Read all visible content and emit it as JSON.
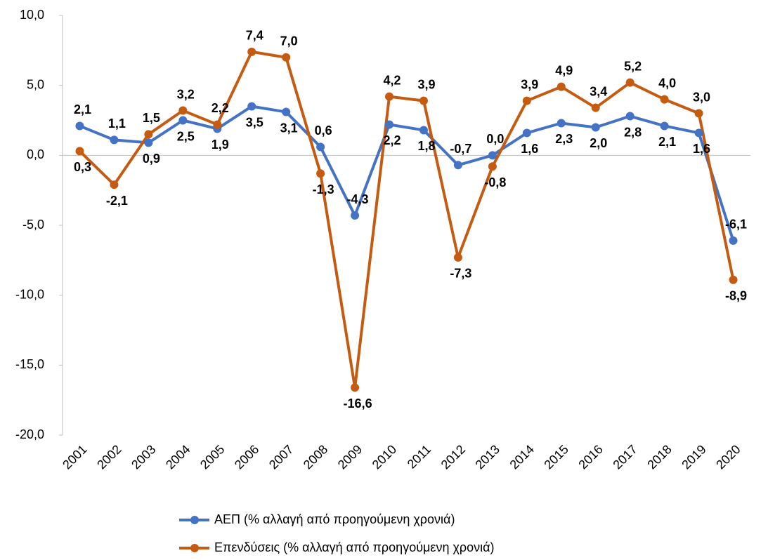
{
  "chart_data": {
    "type": "line",
    "categories": [
      "2001",
      "2002",
      "2003",
      "2004",
      "2005",
      "2006",
      "2007",
      "2008",
      "2009",
      "2010",
      "2011",
      "2012",
      "2013",
      "2014",
      "2015",
      "2016",
      "2017",
      "2018",
      "2019",
      "2020"
    ],
    "series": [
      {
        "name": "ΑΕΠ (% αλλαγή από προηγούμενη χρονιά)",
        "color": "#4472c4",
        "values": [
          2.1,
          1.1,
          0.9,
          2.5,
          1.9,
          3.5,
          3.1,
          0.6,
          -4.3,
          2.2,
          1.8,
          -0.7,
          0.0,
          1.6,
          2.3,
          2.0,
          2.8,
          2.1,
          1.6,
          -6.1
        ],
        "value_labels": [
          "2,1",
          "1,1",
          "0,9",
          "2,5",
          "1,9",
          "3,5",
          "3,1",
          "0,6",
          "-4,3",
          "2,2",
          "1,8",
          "-0,7",
          "0,0",
          "1,6",
          "2,3",
          "2,0",
          "2,8",
          "2,1",
          "1,6",
          "-6,1"
        ]
      },
      {
        "name": "Επενδύσεις (% αλλαγή από προηγούμενη χρονιά)",
        "color": "#c55a11",
        "values": [
          0.3,
          -2.1,
          1.5,
          3.2,
          2.2,
          7.4,
          7.0,
          -1.3,
          -16.6,
          4.2,
          3.9,
          -7.3,
          -0.8,
          3.9,
          4.9,
          3.4,
          5.2,
          4.0,
          3.0,
          -8.9
        ],
        "value_labels": [
          "0,3",
          "-2,1",
          "1,5",
          "3,2",
          "2,2",
          "7,4",
          "7,0",
          "-1,3",
          "-16,6",
          "4,2",
          "3,9",
          "-7,3",
          "-0,8",
          "3,9",
          "4,9",
          "3,4",
          "5,2",
          "4,0",
          "3,0",
          "-8,9"
        ]
      }
    ],
    "ylim": [
      -20,
      10
    ],
    "yticks": [
      {
        "value": -20,
        "label": "-20,0"
      },
      {
        "value": -15,
        "label": "-15,0"
      },
      {
        "value": -10,
        "label": "-10,0"
      },
      {
        "value": -5,
        "label": "-5,0"
      },
      {
        "value": 0,
        "label": "0,0"
      },
      {
        "value": 5,
        "label": "5,0"
      },
      {
        "value": 10,
        "label": "10,0"
      }
    ],
    "grid": false
  }
}
